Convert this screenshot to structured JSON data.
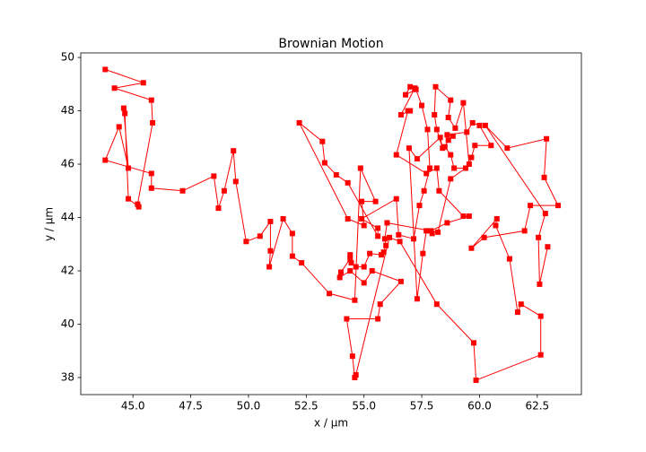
{
  "chart_data": {
    "type": "line",
    "title": "Brownian Motion",
    "xlabel": "x / μm",
    "ylabel": "y / μm",
    "color": "#ff0000",
    "marker": "square",
    "xlim": [
      42.74,
      64.41
    ],
    "ylim": [
      37.36,
      50.17
    ],
    "xticks": [
      {
        "value": 45,
        "label": "45.0"
      },
      {
        "value": 47.5,
        "label": "47.5"
      },
      {
        "value": 50,
        "label": "50.0"
      },
      {
        "value": 52.5,
        "label": "52.5"
      },
      {
        "value": 55,
        "label": "55.0"
      },
      {
        "value": 57.5,
        "label": "57.5"
      },
      {
        "value": 60,
        "label": "60.0"
      },
      {
        "value": 62.5,
        "label": "62.5"
      }
    ],
    "yticks": [
      38,
      40,
      42,
      44,
      46,
      48,
      50
    ],
    "x": [
      43.8,
      45.45,
      44.2,
      45.8,
      45.85,
      45.2,
      45.25,
      44.8,
      44.65,
      44.6,
      44.8,
      44.4,
      43.8,
      45.8,
      45.8,
      47.15,
      48.5,
      48.7,
      48.95,
      49.35,
      49.45,
      49.9,
      50.5,
      50.95,
      50.95,
      50.9,
      51.5,
      51.9,
      51.9,
      52.3,
      53.5,
      54.6,
      54.85,
      55.5,
      54.9,
      55.0,
      54.3,
      52.2,
      53.2,
      53.3,
      53.8,
      54.3,
      55.6,
      55.6,
      54.9,
      56.4,
      56.5,
      57.15,
      57.4,
      57.6,
      57.85,
      57.75,
      57.5,
      57.25,
      56.8,
      57.0,
      57.2,
      56.6,
      57.0,
      56.9,
      56.4,
      57.7,
      58.15,
      58.25,
      59.3,
      59.55,
      58.6,
      57.9,
      57.95,
      57.7,
      57.55,
      57.3,
      56.95,
      57.3,
      58.3,
      58.4,
      58.15,
      58.05,
      58.1,
      58.75,
      58.65,
      58.95,
      59.3,
      59.55,
      59.65,
      59.8,
      60.5,
      60.0,
      59.7,
      59.45,
      58.6,
      58.85,
      58.65,
      58.5,
      58.75,
      58.9,
      59.4,
      58.75,
      58.2,
      56.0,
      55.9,
      55.95,
      55.85,
      55.75,
      55.25,
      55.0,
      54.65,
      54.45,
      54.4,
      54.4,
      54.0,
      53.95,
      54.4,
      55.0,
      55.35,
      56.6,
      55.7,
      55.6,
      54.25,
      54.5,
      54.6,
      54.65,
      56.1,
      56.55,
      58.15,
      59.75,
      59.85,
      62.65,
      62.65,
      61.8,
      61.65,
      61.3,
      60.7,
      60.75,
      59.65,
      60.2,
      61.95,
      62.2,
      63.4,
      62.8,
      62.9,
      61.2,
      60.25,
      62.85,
      62.55,
      62.6,
      62.95
    ],
    "values": [
      49.55,
      49.05,
      48.85,
      48.4,
      47.55,
      44.5,
      44.4,
      44.7,
      47.9,
      48.1,
      45.85,
      47.4,
      46.15,
      45.65,
      45.1,
      45.0,
      45.55,
      44.35,
      45.0,
      46.5,
      45.35,
      43.1,
      43.3,
      43.85,
      42.75,
      42.15,
      43.95,
      43.4,
      42.55,
      42.3,
      41.15,
      40.9,
      45.85,
      44.6,
      44.6,
      43.7,
      43.95,
      47.55,
      46.85,
      46.05,
      45.6,
      45.3,
      43.3,
      43.6,
      43.95,
      44.7,
      43.35,
      43.2,
      44.45,
      45.0,
      45.85,
      47.3,
      48.2,
      48.8,
      48.6,
      48.9,
      48.85,
      47.85,
      48.0,
      48.0,
      46.35,
      45.65,
      45.85,
      45.0,
      44.05,
      44.05,
      43.8,
      43.5,
      43.4,
      43.5,
      42.65,
      40.95,
      46.6,
      46.2,
      47.0,
      46.6,
      47.3,
      47.85,
      48.9,
      48.4,
      47.75,
      47.35,
      48.3,
      46.0,
      46.25,
      46.7,
      46.7,
      47.45,
      47.55,
      47.2,
      47.1,
      47.05,
      46.9,
      46.65,
      46.35,
      45.85,
      45.85,
      45.45,
      43.45,
      43.8,
      43.2,
      42.95,
      42.7,
      42.6,
      42.65,
      42.15,
      42.15,
      42.3,
      42.6,
      42.45,
      41.95,
      41.75,
      42.0,
      41.55,
      42.0,
      41.6,
      40.75,
      40.2,
      40.2,
      38.8,
      38.0,
      38.1,
      43.25,
      43.1,
      40.75,
      39.3,
      37.9,
      38.85,
      40.3,
      40.75,
      40.45,
      42.45,
      43.7,
      43.95,
      42.85,
      43.25,
      43.5,
      44.45,
      44.45,
      45.5,
      46.95,
      46.6,
      47.45,
      44.15,
      43.25,
      41.5,
      42.9
    ]
  }
}
